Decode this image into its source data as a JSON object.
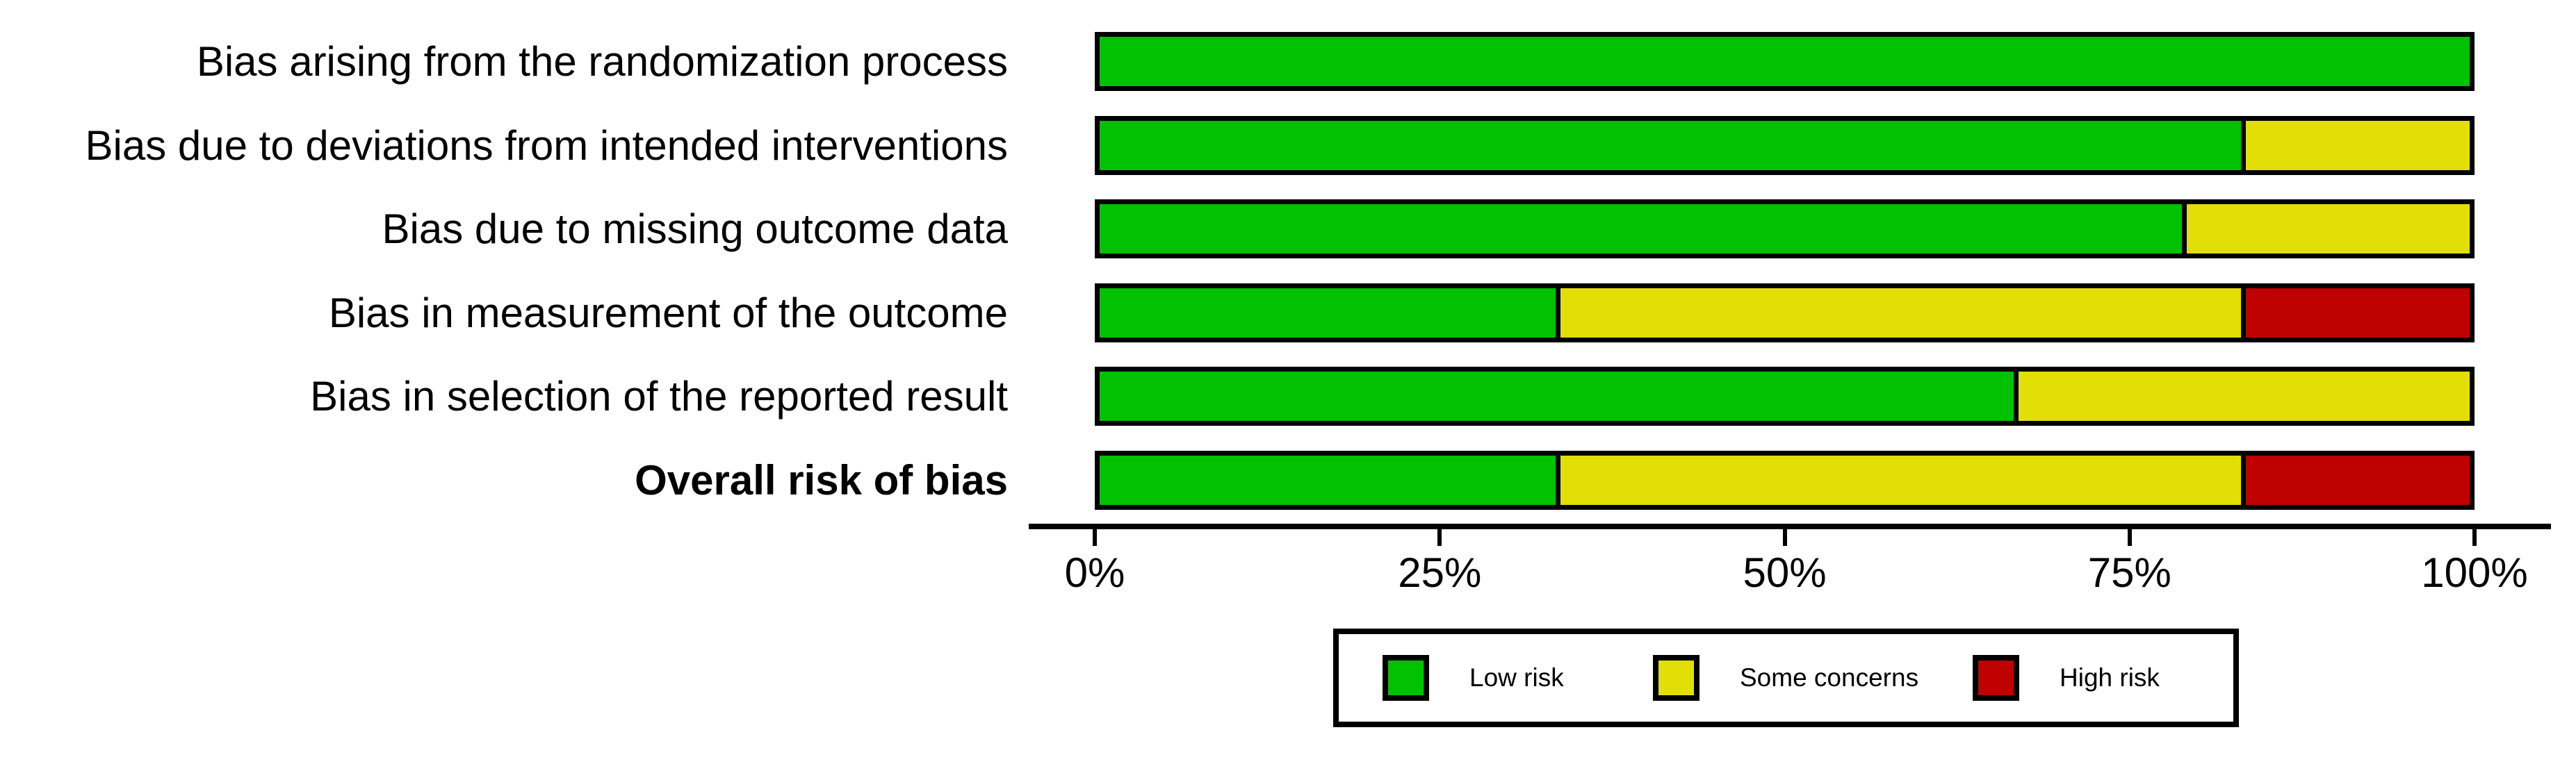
{
  "chart_data": {
    "type": "bar",
    "orientation": "horizontal",
    "stacked": true,
    "unit": "percent",
    "xlim": [
      0,
      100
    ],
    "grid": false,
    "legend_position": "bottom",
    "rows": [
      {
        "label": "Bias arising from the randomization process",
        "bold": false,
        "segments": [
          {
            "risk": "low",
            "pct": 100
          }
        ]
      },
      {
        "label": "Bias due to deviations from intended interventions",
        "bold": false,
        "segments": [
          {
            "risk": "low",
            "pct": 83.3
          },
          {
            "risk": "some_concerns",
            "pct": 16.7
          }
        ]
      },
      {
        "label": "Bias due to missing outcome data",
        "bold": false,
        "segments": [
          {
            "risk": "low",
            "pct": 79
          },
          {
            "risk": "some_concerns",
            "pct": 21
          }
        ]
      },
      {
        "label": "Bias in measurement of the outcome",
        "bold": false,
        "segments": [
          {
            "risk": "low",
            "pct": 33.3
          },
          {
            "risk": "some_concerns",
            "pct": 50
          },
          {
            "risk": "high",
            "pct": 16.7
          }
        ]
      },
      {
        "label": "Bias in selection of the reported result",
        "bold": false,
        "segments": [
          {
            "risk": "low",
            "pct": 66.7
          },
          {
            "risk": "some_concerns",
            "pct": 33.3
          }
        ]
      },
      {
        "label": "Overall risk of bias",
        "bold": true,
        "segments": [
          {
            "risk": "low",
            "pct": 33.3
          },
          {
            "risk": "some_concerns",
            "pct": 50
          },
          {
            "risk": "high",
            "pct": 16.7
          }
        ]
      }
    ],
    "x_ticks": [
      {
        "label": "0%",
        "pct": 0
      },
      {
        "label": "25%",
        "pct": 25
      },
      {
        "label": "50%",
        "pct": 50
      },
      {
        "label": "75%",
        "pct": 75
      },
      {
        "label": "100%",
        "pct": 100
      }
    ],
    "legend": {
      "items": [
        {
          "label": "Low risk",
          "risk": "low",
          "color": "#02C100"
        },
        {
          "label": "Some concerns",
          "risk": "some_concerns",
          "color": "#E2DF07"
        },
        {
          "label": "High risk",
          "risk": "high",
          "color": "#BF0000"
        }
      ]
    },
    "colors": {
      "bar_border": "#000000",
      "axis": "#000000",
      "text": "#000000",
      "background": "#FFFFFF"
    }
  }
}
